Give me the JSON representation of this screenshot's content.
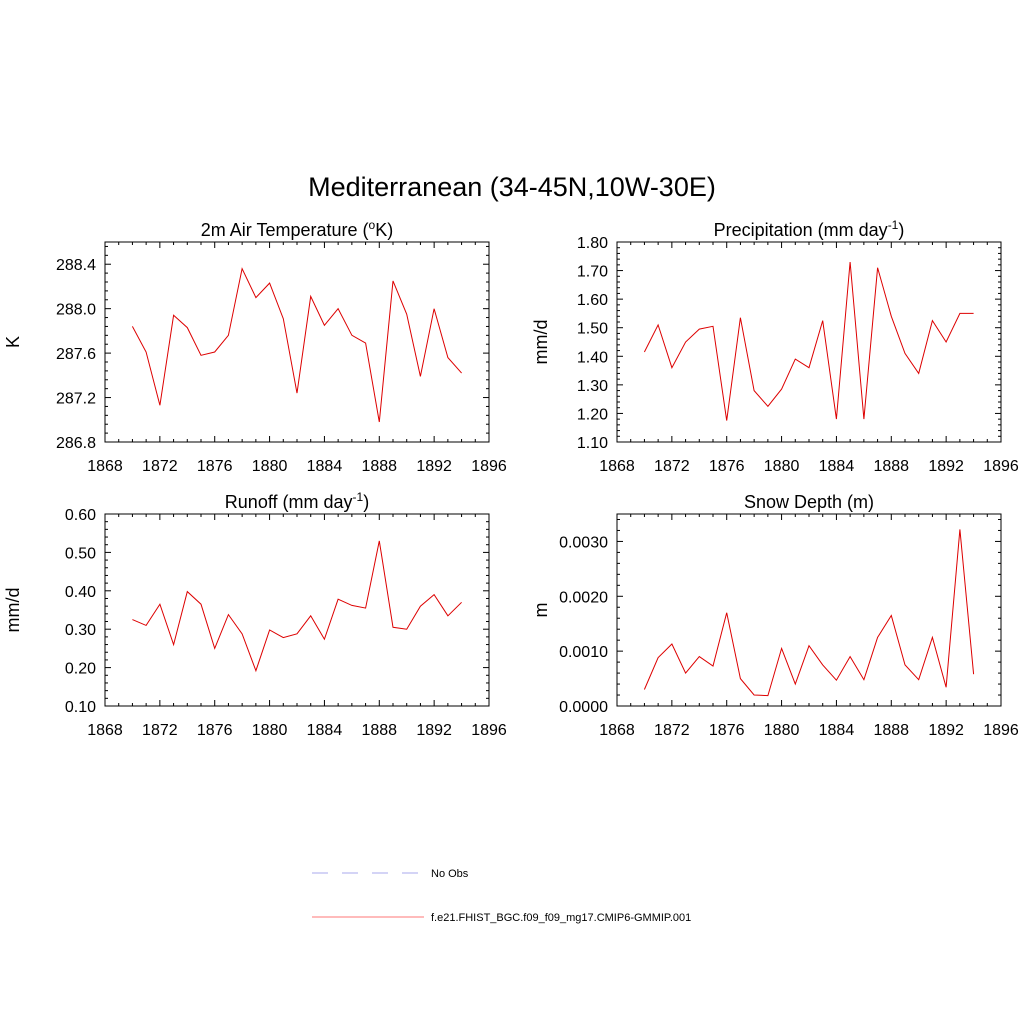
{
  "title": "Mediterranean (34-45N,10W-30E)",
  "legend": {
    "placement": "bottom-center",
    "items": [
      {
        "label": "No Obs",
        "color": "#aaaaee",
        "style": "dashed"
      },
      {
        "label": "f.e21.FHIST_BGC.f09_f09_mg17.CMIP6-GMMIP.001",
        "color": "#ff7777",
        "style": "solid"
      }
    ]
  },
  "chart_data": [
    {
      "type": "line",
      "title": "2m Air Temperature (°K)",
      "title_parts": {
        "pre": "2m Air Temperature (",
        "sup": "o",
        "post": "K)"
      },
      "ylabel": "K",
      "xlim": [
        1868,
        1896
      ],
      "xticks": [
        "1868",
        "1872",
        "1876",
        "1880",
        "1884",
        "1888",
        "1892",
        "1896"
      ],
      "ylim": [
        286.8,
        288.6
      ],
      "yticks": [
        "286.8",
        "287.2",
        "287.6",
        "288.0",
        "288.4"
      ],
      "color": "#dd0000",
      "x": [
        1870,
        1871,
        1872,
        1873,
        1874,
        1875,
        1876,
        1877,
        1878,
        1879,
        1880,
        1881,
        1882,
        1883,
        1884,
        1885,
        1886,
        1887,
        1888,
        1889,
        1890,
        1891,
        1892,
        1893,
        1894
      ],
      "values": [
        287.84,
        287.61,
        287.13,
        287.94,
        287.83,
        287.58,
        287.61,
        287.76,
        288.36,
        288.1,
        288.23,
        287.91,
        287.24,
        288.11,
        287.85,
        288.0,
        287.76,
        287.69,
        286.98,
        288.25,
        287.95,
        287.39,
        288.0,
        287.56,
        287.42
      ]
    },
    {
      "type": "line",
      "title": "Precipitation (mm day-1)",
      "title_parts": {
        "pre": "Precipitation (mm day",
        "sup": "-1",
        "post": ")"
      },
      "ylabel": "mm/d",
      "xlim": [
        1868,
        1896
      ],
      "xticks": [
        "1868",
        "1872",
        "1876",
        "1880",
        "1884",
        "1888",
        "1892",
        "1896"
      ],
      "ylim": [
        1.1,
        1.8
      ],
      "yticks": [
        "1.10",
        "1.20",
        "1.30",
        "1.40",
        "1.50",
        "1.60",
        "1.70",
        "1.80"
      ],
      "color": "#dd0000",
      "x": [
        1870,
        1871,
        1872,
        1873,
        1874,
        1875,
        1876,
        1877,
        1878,
        1879,
        1880,
        1881,
        1882,
        1883,
        1884,
        1885,
        1886,
        1887,
        1888,
        1889,
        1890,
        1891,
        1892,
        1893,
        1894
      ],
      "values": [
        1.415,
        1.51,
        1.36,
        1.45,
        1.495,
        1.505,
        1.175,
        1.535,
        1.28,
        1.225,
        1.285,
        1.39,
        1.36,
        1.525,
        1.18,
        1.73,
        1.18,
        1.71,
        1.54,
        1.41,
        1.34,
        1.525,
        1.45,
        1.55,
        1.55
      ]
    },
    {
      "type": "line",
      "title": "Runoff (mm day-1)",
      "title_parts": {
        "pre": "Runoff (mm day",
        "sup": "-1",
        "post": ")"
      },
      "ylabel": "mm/d",
      "xlim": [
        1868,
        1896
      ],
      "xticks": [
        "1868",
        "1872",
        "1876",
        "1880",
        "1884",
        "1888",
        "1892",
        "1896"
      ],
      "ylim": [
        0.1,
        0.6
      ],
      "yticks": [
        "0.10",
        "0.20",
        "0.30",
        "0.40",
        "0.50",
        "0.60"
      ],
      "color": "#dd0000",
      "x": [
        1870,
        1871,
        1872,
        1873,
        1874,
        1875,
        1876,
        1877,
        1878,
        1879,
        1880,
        1881,
        1882,
        1883,
        1884,
        1885,
        1886,
        1887,
        1888,
        1889,
        1890,
        1891,
        1892,
        1893,
        1894
      ],
      "values": [
        0.325,
        0.31,
        0.365,
        0.26,
        0.398,
        0.365,
        0.25,
        0.338,
        0.288,
        0.192,
        0.298,
        0.278,
        0.288,
        0.335,
        0.274,
        0.378,
        0.362,
        0.355,
        0.53,
        0.305,
        0.3,
        0.36,
        0.39,
        0.335,
        0.37
      ]
    },
    {
      "type": "line",
      "title": "Snow Depth (m)",
      "title_parts": {
        "pre": "Snow Depth (m)",
        "sup": "",
        "post": ""
      },
      "ylabel": "m",
      "xlim": [
        1868,
        1896
      ],
      "xticks": [
        "1868",
        "1872",
        "1876",
        "1880",
        "1884",
        "1888",
        "1892",
        "1896"
      ],
      "ylim": [
        0.0,
        0.0035
      ],
      "yticks": [
        "0.0000",
        "0.0010",
        "0.0020",
        "0.0030"
      ],
      "color": "#dd0000",
      "x": [
        1870,
        1871,
        1872,
        1873,
        1874,
        1875,
        1876,
        1877,
        1878,
        1879,
        1880,
        1881,
        1882,
        1883,
        1884,
        1885,
        1886,
        1887,
        1888,
        1889,
        1890,
        1891,
        1892,
        1893,
        1894
      ],
      "values": [
        0.0003,
        0.00088,
        0.00113,
        0.0006,
        0.0009,
        0.00073,
        0.0017,
        0.0005,
        0.0002,
        0.00019,
        0.00105,
        0.0004,
        0.0011,
        0.00075,
        0.00047,
        0.0009,
        0.00048,
        0.00125,
        0.00165,
        0.00075,
        0.00048,
        0.00125,
        0.00034,
        0.00322,
        0.00058
      ]
    }
  ]
}
